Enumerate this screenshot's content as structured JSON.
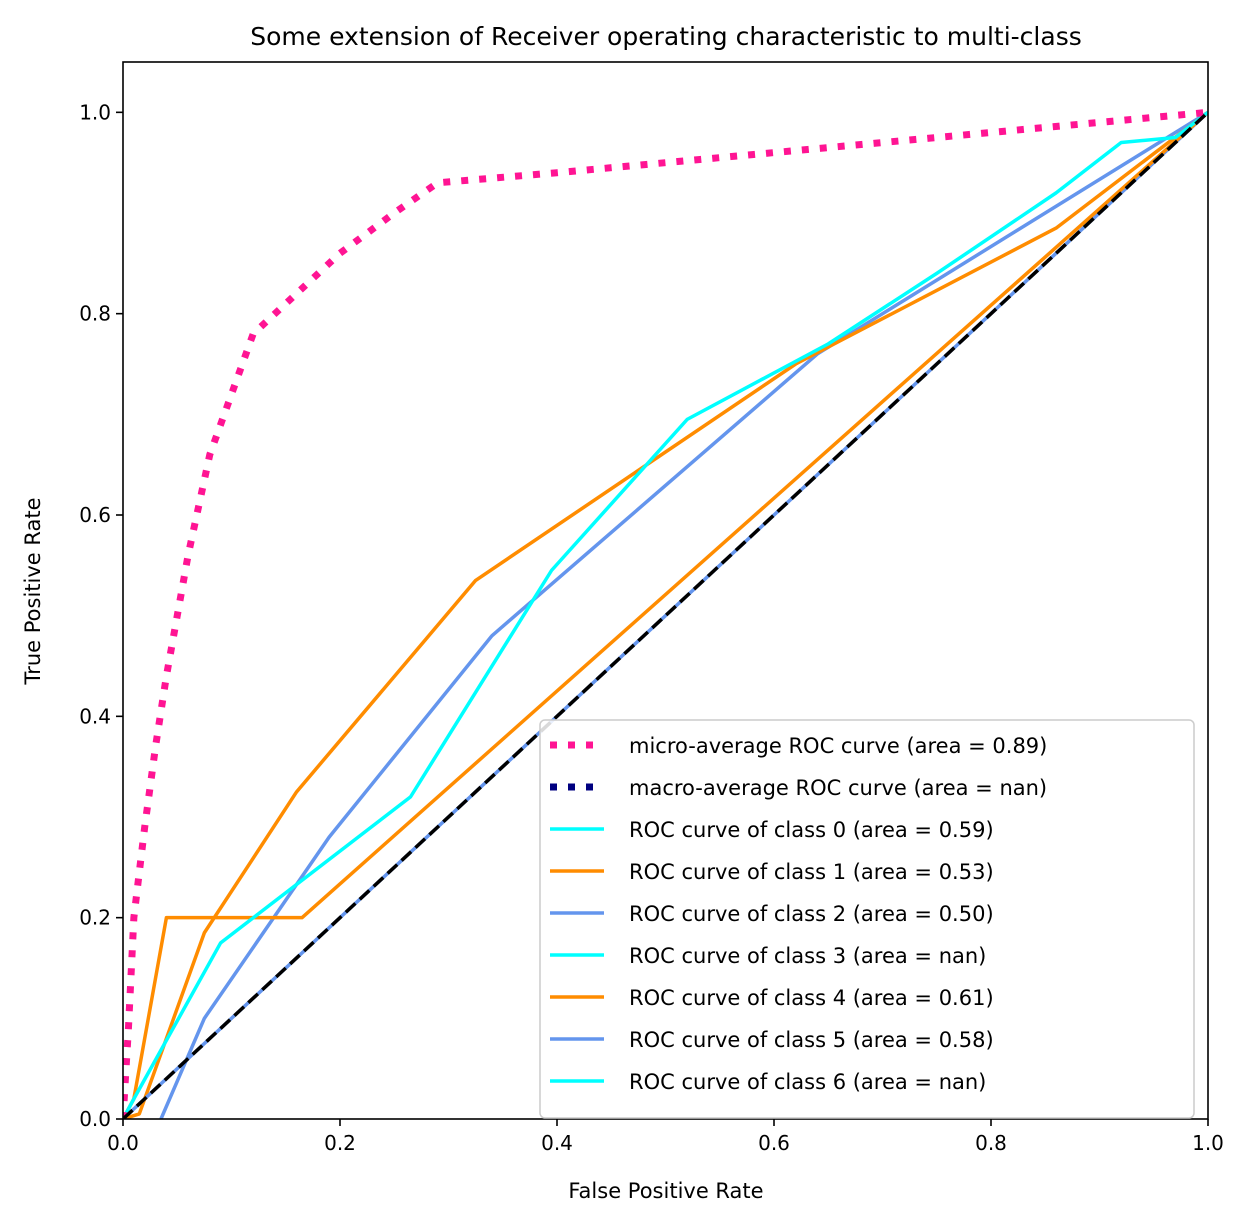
{
  "chart_data": {
    "type": "line",
    "title": "Some extension of Receiver operating characteristic to multi-class",
    "xlabel": "False Positive Rate",
    "ylabel": "True Positive Rate",
    "xlim": [
      0.0,
      1.0
    ],
    "ylim": [
      0.0,
      1.05
    ],
    "xticks": [
      "0.0",
      "0.2",
      "0.4",
      "0.6",
      "0.8",
      "1.0"
    ],
    "yticks": [
      "0.0",
      "0.2",
      "0.4",
      "0.6",
      "0.8",
      "1.0"
    ],
    "grid": false,
    "legend_position": "lower-right",
    "series": [
      {
        "name": "micro-average ROC curve (area = 0.89)",
        "color": "#ff1493",
        "style": "dotted",
        "x": [
          0.0,
          0.005,
          0.01,
          0.02,
          0.03,
          0.04,
          0.05,
          0.06,
          0.07,
          0.08,
          0.1,
          0.12,
          0.14,
          0.17,
          0.2,
          0.25,
          0.29,
          0.4,
          0.5,
          0.6,
          0.7,
          0.8,
          0.9,
          1.0
        ],
        "y": [
          0.0,
          0.09,
          0.2,
          0.29,
          0.37,
          0.44,
          0.5,
          0.56,
          0.61,
          0.66,
          0.72,
          0.78,
          0.8,
          0.83,
          0.86,
          0.9,
          0.93,
          0.94,
          0.95,
          0.96,
          0.97,
          0.98,
          0.99,
          1.0
        ]
      },
      {
        "name": "macro-average ROC curve (area = nan)",
        "color": "#000080",
        "style": "dotted",
        "x": [],
        "y": []
      },
      {
        "name": "ROC curve of class 0 (area = 0.59)",
        "color": "#00ffff",
        "style": "solid",
        "x": [
          0.0,
          0.01,
          0.09,
          0.265,
          0.395,
          0.52,
          0.65,
          0.75,
          0.86,
          0.92,
          0.97,
          1.0
        ],
        "y": [
          0.0,
          0.02,
          0.175,
          0.32,
          0.545,
          0.695,
          0.77,
          0.84,
          0.92,
          0.97,
          0.975,
          1.0
        ]
      },
      {
        "name": "ROC curve of class 1 (area = 0.53)",
        "color": "#ff8c00",
        "style": "solid",
        "x": [
          0.0,
          0.01,
          0.04,
          0.165,
          1.0
        ],
        "y": [
          0.0,
          0.02,
          0.2,
          0.2,
          1.0
        ]
      },
      {
        "name": "ROC curve of class 2 (area = 0.50)",
        "color": "#6495ed",
        "style": "solid",
        "x": [
          0.0,
          1.0
        ],
        "y": [
          0.0,
          1.0
        ]
      },
      {
        "name": "ROC curve of class 3 (area = nan)",
        "color": "#00ffff",
        "style": "solid",
        "x": [],
        "y": []
      },
      {
        "name": "ROC curve of class 4 (area = 0.61)",
        "color": "#ff8c00",
        "style": "solid",
        "x": [
          0.0,
          0.015,
          0.075,
          0.16,
          0.325,
          0.62,
          0.86,
          1.0
        ],
        "y": [
          0.0,
          0.005,
          0.185,
          0.325,
          0.535,
          0.75,
          0.885,
          1.0
        ]
      },
      {
        "name": "ROC curve of class 5 (area = 0.58)",
        "color": "#6495ed",
        "style": "solid",
        "x": [
          0.035,
          0.075,
          0.19,
          0.34,
          0.64,
          1.0
        ],
        "y": [
          0.0,
          0.1,
          0.28,
          0.48,
          0.76,
          1.0
        ]
      },
      {
        "name": "ROC curve of class 6 (area = nan)",
        "color": "#00ffff",
        "style": "solid",
        "x": [],
        "y": []
      }
    ],
    "reference_line": {
      "color": "#000000",
      "style": "dashed",
      "x": [
        0.0,
        1.0
      ],
      "y": [
        0.0,
        1.0
      ]
    }
  }
}
